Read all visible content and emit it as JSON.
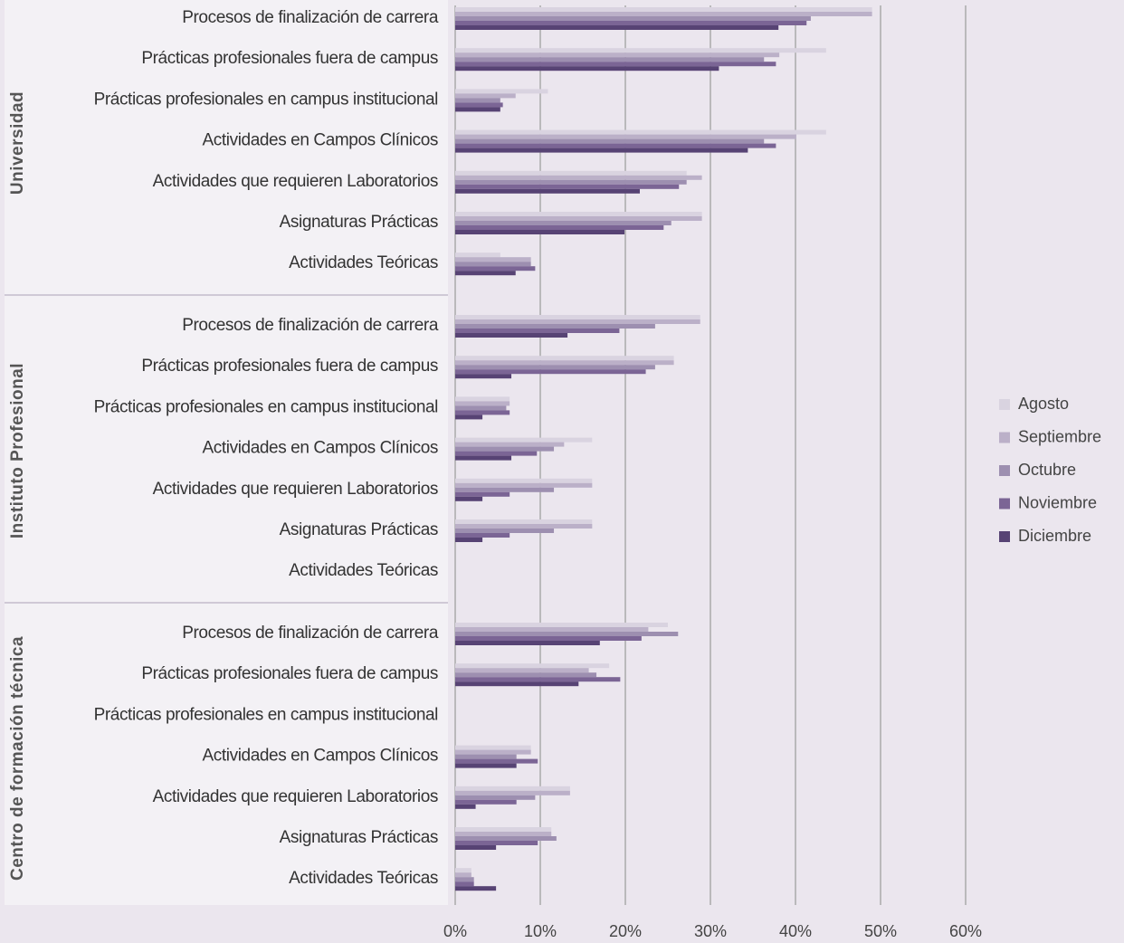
{
  "chart_data": {
    "type": "grouped-hbar",
    "groups": [
      "Universidad",
      "Instituto Profesional",
      "Centro de formación técnica"
    ],
    "categories": [
      "Procesos de finalización de carrera",
      "Prácticas profesionales fuera de campus",
      "Prácticas profesionales en campus institucional",
      "Actividades en Campos Clínicos",
      "Actividades que requieren Laboratorios",
      "Asignaturas Prácticas",
      "Actividades Teóricas",
      "Procesos de finalización de carrera",
      "Prácticas profesionales fuera de campus",
      "Prácticas profesionales en campus institucional",
      "Actividades en Campos Clínicos",
      "Actividades que requieren Laboratorios",
      "Asignaturas Prácticas",
      "Actividades Teóricas",
      "Procesos de finalización de carrera",
      "Prácticas profesionales fuera de campus",
      "Prácticas profesionales en campus institucional",
      "Actividades en Campos Clínicos",
      "Actividades que requieren Laboratorios",
      "Asignaturas Prácticas",
      "Actividades Teóricas"
    ],
    "series": [
      {
        "name": "Agosto",
        "color": "#d9d3e0",
        "values": [
          49.0,
          43.6,
          10.9,
          43.6,
          27.2,
          29.0,
          5.3,
          28.8,
          25.7,
          6.4,
          16.1,
          16.1,
          16.1,
          0,
          25.0,
          18.1,
          0,
          8.9,
          13.5,
          11.3,
          1.9
        ]
      },
      {
        "name": "Septiembre",
        "color": "#bbb0c8",
        "values": [
          49.0,
          38.1,
          7.1,
          40.1,
          29.0,
          29.0,
          8.9,
          28.8,
          25.7,
          6.4,
          12.8,
          16.1,
          16.1,
          0,
          22.7,
          15.7,
          0,
          8.9,
          13.5,
          11.3,
          1.9
        ]
      },
      {
        "name": "Octubre",
        "color": "#9d8fb0",
        "values": [
          41.8,
          36.3,
          5.3,
          36.3,
          27.2,
          25.4,
          8.9,
          23.5,
          23.5,
          6.0,
          11.6,
          11.6,
          11.6,
          0,
          26.2,
          16.6,
          0,
          7.2,
          9.4,
          11.9,
          2.2
        ]
      },
      {
        "name": "Noviembre",
        "color": "#7b6595",
        "values": [
          41.3,
          37.7,
          5.6,
          37.7,
          26.3,
          24.5,
          9.4,
          19.3,
          22.4,
          6.4,
          9.6,
          6.4,
          6.4,
          0,
          21.9,
          19.4,
          0,
          9.7,
          7.2,
          9.7,
          2.2
        ]
      },
      {
        "name": "Diciembre",
        "color": "#574374",
        "values": [
          38.0,
          31.0,
          5.3,
          34.4,
          21.7,
          19.9,
          7.1,
          13.2,
          6.6,
          3.2,
          6.6,
          3.2,
          3.2,
          0,
          17.0,
          14.5,
          0,
          7.2,
          2.4,
          4.8,
          4.8
        ]
      }
    ],
    "xlim": [
      0,
      60
    ],
    "xticks": [
      {
        "value": 0,
        "label": "0%"
      },
      {
        "value": 10,
        "label": "10%"
      },
      {
        "value": 20,
        "label": "20%"
      },
      {
        "value": 30,
        "label": "30%"
      },
      {
        "value": 40,
        "label": "40%"
      },
      {
        "value": 50,
        "label": "50%"
      },
      {
        "value": 60,
        "label": "60%"
      }
    ],
    "grid": true,
    "legend": "right"
  }
}
